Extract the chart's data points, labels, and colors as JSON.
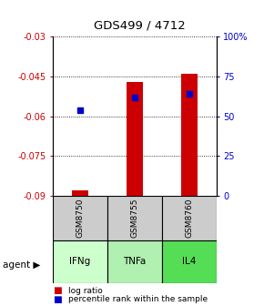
{
  "title": "GDS499 / 4712",
  "samples": [
    "GSM8750",
    "GSM8755",
    "GSM8760"
  ],
  "agents": [
    "IFNg",
    "TNFa",
    "IL4"
  ],
  "log_ratios": [
    -0.088,
    -0.047,
    -0.044
  ],
  "percentile_ranks": [
    54,
    62,
    64
  ],
  "ylim_left": [
    -0.09,
    -0.03
  ],
  "ylim_right": [
    0,
    100
  ],
  "yticks_left": [
    -0.09,
    -0.075,
    -0.06,
    -0.045,
    -0.03
  ],
  "yticks_right": [
    0,
    25,
    50,
    75,
    100
  ],
  "ytick_labels_left": [
    "-0.09",
    "-0.075",
    "-0.06",
    "-0.045",
    "-0.03"
  ],
  "ytick_labels_right": [
    "0",
    "25",
    "50",
    "75",
    "100%"
  ],
  "bar_color": "#cc0000",
  "dot_color": "#0000cc",
  "agent_colors": [
    "#ccffcc",
    "#b8f0b8",
    "#66dd66"
  ],
  "sample_box_color": "#cccccc",
  "left_tick_color": "#cc0000",
  "right_tick_color": "#0000cc"
}
